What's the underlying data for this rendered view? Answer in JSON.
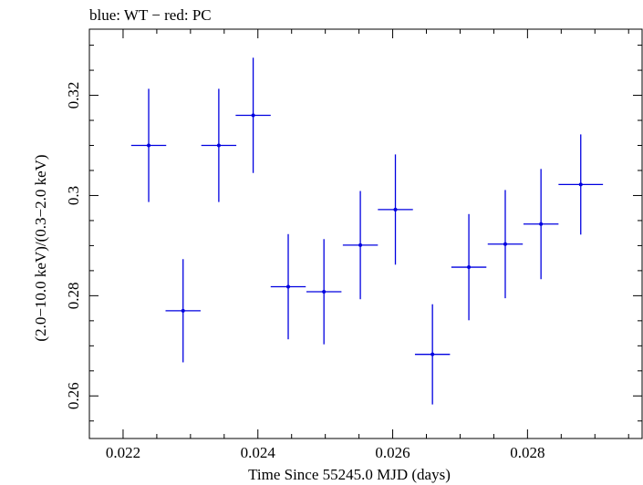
{
  "chart_data": {
    "type": "scatter",
    "title": "blue: WT − red: PC",
    "xlabel": "Time Since 55245.0 MJD (days)",
    "ylabel": "(2.0−10.0 keV)/(0.3−2.0 keV)",
    "xlim": [
      0.0215,
      0.0297
    ],
    "ylim": [
      0.2515,
      0.3332
    ],
    "x_ticks": [
      0.022,
      0.024,
      0.026,
      0.028
    ],
    "x_tick_labels": [
      "0.022",
      "0.024",
      "0.026",
      "0.028"
    ],
    "y_ticks": [
      0.26,
      0.28,
      0.3,
      0.32
    ],
    "y_tick_labels": [
      "0.26",
      "0.28",
      "0.3",
      "0.32"
    ],
    "grid": false,
    "series": [
      {
        "color": "#0000e0",
        "x": [
          0.02238,
          0.02289,
          0.02342,
          0.02393,
          0.02445,
          0.02498,
          0.02552,
          0.02604,
          0.02659,
          0.02713,
          0.02767,
          0.0282,
          0.02879
        ],
        "xerr": [
          0.00026,
          0.00026,
          0.00026,
          0.00026,
          0.00026,
          0.00026,
          0.00026,
          0.00026,
          0.00026,
          0.00026,
          0.00026,
          0.00026,
          0.00033
        ],
        "y": [
          0.31,
          0.277,
          0.31,
          0.316,
          0.2818,
          0.2808,
          0.2901,
          0.2972,
          0.2683,
          0.2857,
          0.2903,
          0.2943,
          0.3022
        ],
        "yerr": [
          0.0113,
          0.0103,
          0.0113,
          0.0115,
          0.0105,
          0.0105,
          0.0108,
          0.011,
          0.01,
          0.0106,
          0.0108,
          0.011,
          0.01
        ]
      }
    ]
  }
}
